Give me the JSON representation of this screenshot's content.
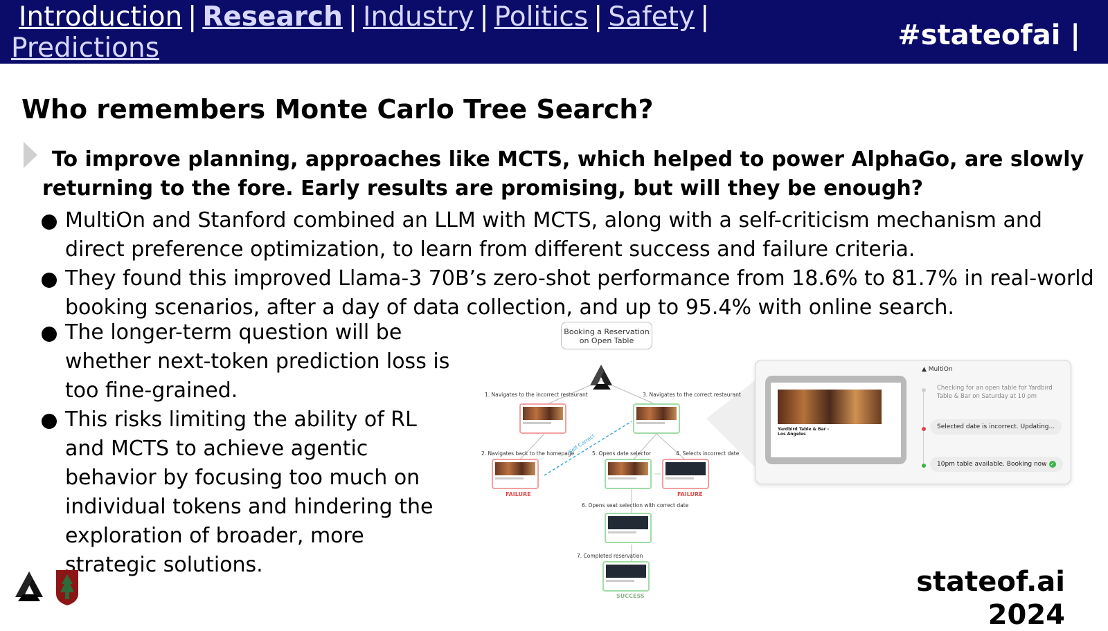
{
  "nav": {
    "items": [
      {
        "label": "Introduction"
      },
      {
        "label": "Research"
      },
      {
        "label": "Industry"
      },
      {
        "label": "Politics"
      },
      {
        "label": "Safety"
      },
      {
        "label": "Predictions"
      }
    ],
    "separator": "|",
    "hashtag": "#stateofai |"
  },
  "slide": {
    "title": "Who remembers Monte Carlo Tree Search?",
    "subtitle": "To improve planning, approaches like MCTS, which helped to power AlphaGo, are slowly returning to the fore. Early results are promising, but will they be enough?",
    "bullets": [
      "MultiOn and Stanford combined an LLM with MCTS, along with a self-criticism mechanism and direct preference optimization, to learn from different success and failure criteria.",
      "They found this improved Llama-3 70B’s zero-shot performance from 18.6% to 81.7% in real-world booking scenarios, after a day of data collection, and up to 95.4% with online search.",
      "The longer-term question will be whether next-token prediction loss is too fine-grained.",
      "This risks limiting the ability of RL and MCTS to achieve agentic behavior by focusing too much on individual tokens and hindering the exploration of broader, more strategic solutions."
    ]
  },
  "figure": {
    "bubble": "Booking a Reservation on Open Table",
    "steps": {
      "s1": "1. Navigates to the incorrect restaurant",
      "s2": "2. Navigates back to the homepage",
      "s3": "3. Navigates to the correct restaurant",
      "s4": "4. Selects incorrect date",
      "s5": "5. Opens date selector",
      "s6": "6. Opens seat selection with correct date",
      "s7": "7. Completed reservation"
    },
    "self_correct": "Self Correct",
    "failure": "FAILURE",
    "success": "SUCCESS",
    "panel": {
      "brand": "MultiOn",
      "restaurant": "Yardbird Table & Bar - Los Angeles",
      "checking": "Checking for an open table for Yardbird Table & Bar on Saturday at 10 pm",
      "incorrect": "Selected date is incorrect. Updating...",
      "available": "10pm table available. Booking now"
    },
    "colors": {
      "failure": "#e04848",
      "success": "#3bb54a",
      "self_correct": "#3aa8d8"
    }
  },
  "footer": {
    "site": "stateof.ai",
    "year": "2024"
  },
  "colors": {
    "header_bg": "#0b0b6a",
    "link": "#d8d8ff"
  }
}
